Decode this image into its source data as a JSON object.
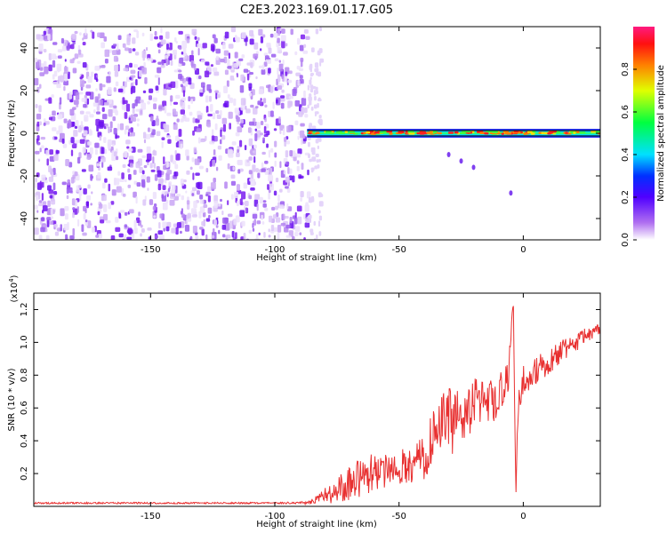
{
  "title": "C2E3.2023.169.01.17.G05",
  "colors": {
    "snr_line": "#e83030",
    "noise_purple": "#7a1cf0",
    "track_band": "#000000"
  },
  "chart_data": [
    {
      "type": "heatmap",
      "name": "spectrogram",
      "xlabel": "Height of straight line (km)",
      "ylabel": "Frequency (Hz)",
      "xlim": [
        -197,
        31
      ],
      "ylim": [
        -50,
        50
      ],
      "xticks": [
        -150,
        -100,
        -50,
        0
      ],
      "xtick_labels": [
        "-150",
        "-100",
        "-50",
        "0"
      ],
      "yticks": [
        -40,
        -20,
        0,
        20,
        40
      ],
      "ytick_labels": [
        "-40",
        "-20",
        "0",
        "20",
        "40"
      ],
      "noise_region_x": [
        -197,
        -87
      ],
      "signal_track": {
        "x_start": -87,
        "x_end": 31,
        "center_frequency_hz": 0,
        "scattered_points": [
          [
            -30,
            -10
          ],
          [
            -25,
            -13
          ],
          [
            -20,
            -16
          ],
          [
            -5,
            -28
          ]
        ]
      },
      "colorbar": {
        "label": "Normalized spectral amplitude",
        "range": [
          0,
          1
        ],
        "ticks": [
          0.0,
          0.2,
          0.4,
          0.6,
          0.8
        ],
        "tick_labels": [
          "0.0",
          "0.2",
          "0.4",
          "0.6",
          "0.8"
        ],
        "colormap": [
          "#ffffff",
          "#8a2be2",
          "#0000ff",
          "#00ffff",
          "#00ff00",
          "#ffff00",
          "#ff8000",
          "#ff0000",
          "#ff1a80"
        ]
      },
      "grid": false
    },
    {
      "type": "line",
      "name": "snr",
      "xlabel": "Height of straight line (km)",
      "ylabel": "SNR (10 * v/v)",
      "multiplier_label": "(x10",
      "multiplier_exponent": "4",
      "xlim": [
        -197,
        31
      ],
      "ylim": [
        0,
        1.3
      ],
      "xticks": [
        -150,
        -100,
        -50,
        0
      ],
      "xtick_labels": [
        "-150",
        "-100",
        "-50",
        "0"
      ],
      "yticks": [
        0.2,
        0.4,
        0.6,
        0.8,
        1.0,
        1.2
      ],
      "ytick_labels": [
        "0.2",
        "0.4",
        "0.6",
        "0.8",
        "1.0",
        "1.2"
      ],
      "series": [
        {
          "x": [
            -197,
            -180,
            -160,
            -140,
            -120,
            -100,
            -90,
            -85,
            -80,
            -75,
            -70,
            -65,
            -60,
            -55,
            -50,
            -45,
            -40,
            -35,
            -30,
            -28,
            -25,
            -20,
            -15,
            -10,
            -6,
            -4,
            -3,
            -2,
            0,
            5,
            10,
            15,
            20,
            25,
            31
          ],
          "y": [
            0.02,
            0.02,
            0.02,
            0.02,
            0.02,
            0.02,
            0.02,
            0.03,
            0.06,
            0.1,
            0.14,
            0.18,
            0.22,
            0.22,
            0.24,
            0.26,
            0.3,
            0.45,
            0.55,
            0.5,
            0.55,
            0.62,
            0.62,
            0.65,
            0.8,
            1.27,
            0.05,
            0.65,
            0.78,
            0.82,
            0.88,
            0.94,
            0.98,
            1.04,
            1.08
          ],
          "noise_amplitude": [
            0.005,
            0.005,
            0.005,
            0.005,
            0.005,
            0.005,
            0.006,
            0.02,
            0.05,
            0.08,
            0.1,
            0.12,
            0.13,
            0.12,
            0.12,
            0.12,
            0.14,
            0.18,
            0.2,
            0.22,
            0.18,
            0.16,
            0.15,
            0.14,
            0.14,
            0.0,
            0.0,
            0.12,
            0.1,
            0.09,
            0.08,
            0.07,
            0.06,
            0.05,
            0.04
          ]
        }
      ],
      "grid": false
    }
  ]
}
